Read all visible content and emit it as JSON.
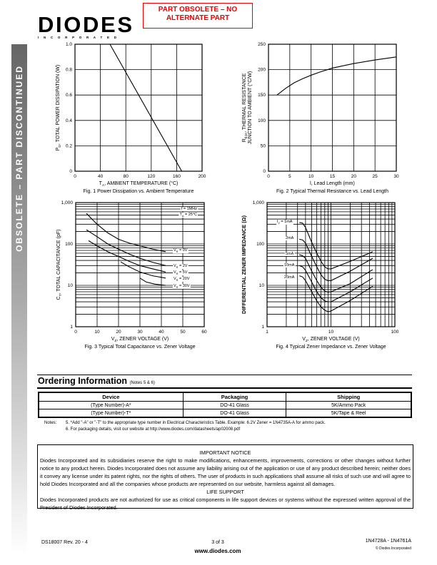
{
  "header": {
    "logo_text": "DIODES",
    "logo_sub": "I N C O R P O R A T E D",
    "obsolete_notice": "PART OBSOLETE – NO ALTERNATE PART"
  },
  "sidebar_banner": "OBSOLETE – PART DISCONTINUED",
  "chart_data": [
    {
      "type": "line",
      "caption": "Fig. 1  Power Dissipation vs. Ambient Temperature",
      "xlabel": {
        "pre": "T",
        "sub": "A",
        "post": ", AMBIENT TEMPERATURE (°C)"
      },
      "ylabel": {
        "pre": "P",
        "sub": "D",
        "post": ", TOTAL POWER DISSIPATION (W)"
      },
      "xscale": "linear",
      "yscale": "linear",
      "xlim": [
        0,
        200
      ],
      "ylim": [
        0,
        1.0
      ],
      "xticks": [
        0,
        40,
        80,
        120,
        160,
        200
      ],
      "xtick_labels": [
        "0",
        "40",
        "80",
        "120",
        "160",
        "200"
      ],
      "yticks": [
        0,
        0.2,
        0.4,
        0.6,
        0.8,
        1.0
      ],
      "ytick_labels": [
        "0",
        "0.2",
        "0.4",
        "0.6",
        "0.8",
        "1.0"
      ],
      "grid": true,
      "series": [
        {
          "points": [
            [
              0,
              1.0
            ],
            [
              55,
              1.0
            ],
            [
              168,
              0
            ]
          ]
        }
      ]
    },
    {
      "type": "line",
      "caption": "Fig. 2  Typical Thermal Resistance vs. Lead Length",
      "xlabel": {
        "pre": "l, Lead Length (mm)",
        "sub": "",
        "post": ""
      },
      "ylabel": {
        "pre": "R",
        "sub": "θJA",
        "post": ", THERMAL RESISTANCE"
      },
      "ylabel2": "JUNCTION TO AMBIENT (°C/W)",
      "xscale": "linear",
      "yscale": "linear",
      "xlim": [
        0,
        30
      ],
      "ylim": [
        0,
        250
      ],
      "xticks": [
        0,
        5,
        10,
        15,
        20,
        25,
        30
      ],
      "xtick_labels": [
        "0",
        "5",
        "10",
        "15",
        "20",
        "25",
        "30"
      ],
      "yticks": [
        0,
        50,
        100,
        150,
        200,
        250
      ],
      "ytick_labels": [
        "0",
        "50",
        "100",
        "150",
        "200",
        "250"
      ],
      "grid": true,
      "series": [
        {
          "points": [
            [
              2,
              150
            ],
            [
              4,
              163
            ],
            [
              6,
              174
            ],
            [
              8,
              182
            ],
            [
              10,
              189
            ],
            [
              12,
              195
            ],
            [
              15,
              203
            ],
            [
              20,
              212
            ],
            [
              25,
              219
            ],
            [
              30,
              225
            ]
          ]
        }
      ]
    },
    {
      "type": "line",
      "caption": "Fig. 3  Typical Total Capacitance vs. Zener Voltage",
      "xlabel": {
        "pre": "V",
        "sub": "Z",
        "post": ", ZENER VOLTAGE (V)"
      },
      "ylabel": {
        "pre": "C",
        "sub": "T",
        "post": ", TOTAL CAPACITANCE (pF)"
      },
      "xscale": "linear",
      "yscale": "log",
      "xlim": [
        0,
        60
      ],
      "ylim": [
        1,
        1000
      ],
      "xticks": [
        0,
        10,
        20,
        30,
        40,
        50,
        60
      ],
      "xtick_labels": [
        "0",
        "10",
        "20",
        "30",
        "40",
        "50",
        "60"
      ],
      "yticks": [
        1,
        10,
        100,
        1000
      ],
      "ytick_labels": [
        "1",
        "10",
        "100",
        "1,000"
      ],
      "grid": true,
      "annotation": [
        {
          "pre": "f = 1MHz",
          "sub": "",
          "post": ""
        },
        {
          "pre": "T",
          "sub": "A",
          "post": " = 25°C"
        }
      ],
      "series": [
        {
          "name": {
            "pre": "V",
            "sub": "R",
            "post": " = 0V"
          },
          "points": [
            [
              5,
              550
            ],
            [
              8,
              380
            ],
            [
              10,
              300
            ],
            [
              15,
              185
            ],
            [
              20,
              130
            ],
            [
              25,
              105
            ],
            [
              30,
              90
            ],
            [
              36,
              75
            ],
            [
              42,
              65
            ]
          ]
        },
        {
          "name": {
            "pre": "V",
            "sub": "R",
            "post": " = 2V"
          },
          "points": [
            [
              5,
              220
            ],
            [
              10,
              150
            ],
            [
              15,
              100
            ],
            [
              20,
              75
            ],
            [
              25,
              57
            ],
            [
              30,
              45
            ],
            [
              36,
              36
            ],
            [
              42,
              30
            ]
          ]
        },
        {
          "name": {
            "pre": "V",
            "sub": "R",
            "post": " = 5V"
          },
          "points": [
            [
              6,
              120
            ],
            [
              10,
              90
            ],
            [
              15,
              65
            ],
            [
              20,
              50
            ],
            [
              25,
              38
            ],
            [
              30,
              30
            ],
            [
              36,
              25
            ],
            [
              42,
              21
            ]
          ]
        },
        {
          "name": {
            "pre": "V",
            "sub": "R",
            "post": " = 20V"
          },
          "points": [
            [
              21,
              37
            ],
            [
              25,
              28
            ],
            [
              30,
              21
            ],
            [
              36,
              17
            ],
            [
              42,
              15
            ]
          ]
        },
        {
          "name": {
            "pre": "V",
            "sub": "R",
            "post": " = 30V"
          },
          "points": [
            [
              30,
              15
            ],
            [
              33,
              12
            ],
            [
              37,
              10.7
            ],
            [
              42,
              10
            ]
          ]
        }
      ]
    },
    {
      "type": "line",
      "caption": "Fig. 4  Typical Zener Impedance vs. Zener Voltage",
      "xlabel": {
        "pre": "V",
        "sub": "Z",
        "post": ", ZENER VOLTAGE (V)"
      },
      "ylabel": {
        "pre": "DIFFERENTIAL ZENER IMPEDANCE (Ω)",
        "sub": "",
        "post": ""
      },
      "xscale": "log",
      "yscale": "log",
      "xlim": [
        1,
        100
      ],
      "ylim": [
        1,
        1000
      ],
      "xticks": [
        1,
        10,
        100
      ],
      "xtick_labels": [
        "1",
        "10",
        "100"
      ],
      "yticks": [
        1,
        10,
        100,
        1000
      ],
      "ytick_labels": [
        "1",
        "10",
        "100",
        "1,000"
      ],
      "grid": true,
      "series": [
        {
          "name": {
            "pre": "I",
            "sub": "Z",
            "post": " = 1mA"
          },
          "points": [
            [
              3.2,
              330
            ],
            [
              3.6,
              320
            ],
            [
              4,
              250
            ],
            [
              5,
              110
            ],
            [
              6,
              60
            ],
            [
              7,
              38
            ],
            [
              8,
              28
            ],
            [
              9,
              25
            ],
            [
              10,
              25
            ],
            [
              20,
              38
            ],
            [
              45,
              65
            ]
          ]
        },
        {
          "name": {
            "pre": "2mA",
            "sub": "",
            "post": ""
          },
          "points": [
            [
              3.2,
              130
            ],
            [
              3.6,
              125
            ],
            [
              4,
              105
            ],
            [
              5,
              50
            ],
            [
              6,
              28
            ],
            [
              7,
              18
            ],
            [
              8,
              14
            ],
            [
              9,
              13
            ],
            [
              10,
              13
            ],
            [
              20,
              22
            ],
            [
              45,
              45
            ]
          ]
        },
        {
          "name": {
            "pre": "5mA",
            "sub": "",
            "post": ""
          },
          "points": [
            [
              3.2,
              55
            ],
            [
              3.6,
              52
            ],
            [
              4,
              45
            ],
            [
              5,
              22
            ],
            [
              6,
              13
            ],
            [
              7,
              9
            ],
            [
              8,
              7.3
            ],
            [
              9,
              6.8
            ],
            [
              10,
              7
            ],
            [
              20,
              11
            ],
            [
              45,
              24
            ]
          ]
        },
        {
          "name": {
            "pre": "10mA",
            "sub": "",
            "post": ""
          },
          "points": [
            [
              3.2,
              30
            ],
            [
              3.6,
              28
            ],
            [
              4,
              23
            ],
            [
              5,
              12
            ],
            [
              6,
              7
            ],
            [
              7,
              5
            ],
            [
              8,
              4.2
            ],
            [
              9,
              4
            ],
            [
              10,
              4
            ],
            [
              20,
              7
            ],
            [
              45,
              15
            ]
          ]
        },
        {
          "name": {
            "pre": "20mA",
            "sub": "",
            "post": ""
          },
          "points": [
            [
              3.2,
              17
            ],
            [
              3.6,
              16
            ],
            [
              4,
              13
            ],
            [
              5,
              7
            ],
            [
              6,
              4.2
            ],
            [
              7,
              3
            ],
            [
              8,
              2.5
            ],
            [
              9,
              2.3
            ],
            [
              10,
              2.4
            ],
            [
              20,
              4.3
            ],
            [
              45,
              9.5
            ]
          ]
        }
      ]
    }
  ],
  "ordering": {
    "title": "Ordering Information",
    "notes_ref": "(Notes 5 & 6)",
    "headers": [
      "Device",
      "Packaging",
      "Shipping"
    ],
    "rows": [
      [
        "(Type Number)-A*",
        "DO-41 Glass",
        "5K/Ammo Pack"
      ],
      [
        "(Type Number)-T*",
        "DO-41 Glass",
        "5K/Tape & Reel"
      ]
    ]
  },
  "notes": {
    "label": "Notes:",
    "items": [
      "5.  *Add \"-A\" or \"-T\" to the appropriate type number in Electrical Characteristics Table.  Example:  6.2V Zener = 1N4735A-A for ammo pack.",
      "6.   For packaging details, visit our website at http://www.diodes.com/datasheets/ap02008.pdf"
    ]
  },
  "notice": {
    "title": "IMPORTANT NOTICE",
    "body": "Diodes Incorporated and its subsidiaries reserve the right to make modifications, enhancements, improvements, corrections or other changes without further notice to any product herein. Diodes Incorporated does not assume any liability arising out of the application or use of any product described herein; neither does it convey any license under its patent rights, nor the rights of others. The user of products in such applications shall assume all risks of such use and will agree to hold Diodes Incorporated and all the companies whose products are represented on our website, harmless against all damages.",
    "life_title": "LIFE SUPPORT",
    "life_body": "Diodes Incorporated products are not authorized for use as critical components in life support devices or systems without the expressed written approval of the President of Diodes Incorporated."
  },
  "footer": {
    "doc": "DS18007 Rev. 20 - 4",
    "page": "3 of 3",
    "website": "www.diodes.com",
    "parts": "1N4728A - 1N4761A",
    "copyright": "© Diodes Incorporated"
  }
}
